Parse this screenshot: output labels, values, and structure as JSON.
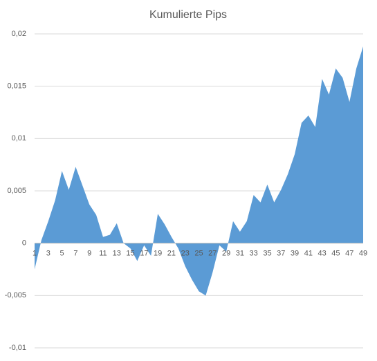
{
  "chart_data": {
    "type": "area",
    "title": "Kumulierte Pips",
    "categories": [
      1,
      null,
      3,
      null,
      5,
      null,
      7,
      null,
      9,
      null,
      11,
      null,
      13,
      null,
      15,
      null,
      17,
      null,
      19,
      null,
      21,
      null,
      23,
      null,
      25,
      null,
      27,
      null,
      29,
      null,
      31,
      null,
      33,
      null,
      35,
      null,
      37,
      null,
      39,
      null,
      41,
      null,
      43,
      null,
      45,
      null,
      47,
      null,
      49
    ],
    "values": [
      -0.0025,
      0.0003,
      0.0021,
      0.0041,
      0.0069,
      0.0051,
      0.0073,
      0.0055,
      0.0037,
      0.0027,
      0.0006,
      0.0008,
      0.0019,
      0.0,
      -0.0005,
      -0.0017,
      -0.0002,
      -0.0012,
      0.0028,
      0.0018,
      0.0006,
      -0.0005,
      -0.0022,
      -0.0035,
      -0.0046,
      -0.005,
      -0.0028,
      -0.0002,
      -0.0008,
      0.0021,
      0.0011,
      0.0021,
      0.0046,
      0.0039,
      0.0056,
      0.0039,
      0.0051,
      0.0066,
      0.0085,
      0.0115,
      0.0122,
      0.0111,
      0.0157,
      0.0142,
      0.0167,
      0.0158,
      0.0135,
      0.0167,
      0.0188
    ],
    "color": "#5b9bd5",
    "ylim": [
      -0.01,
      0.02
    ],
    "yticks": [
      {
        "value": -0.01,
        "label": "-0,01"
      },
      {
        "value": -0.005,
        "label": "-0,005"
      },
      0,
      {
        "value": 0.005,
        "label": "0,005"
      },
      {
        "value": 0.01,
        "label": "0,01"
      },
      {
        "value": 0.015,
        "label": "0,015"
      },
      {
        "value": 0.02,
        "label": "0,02"
      }
    ],
    "grid": true
  }
}
